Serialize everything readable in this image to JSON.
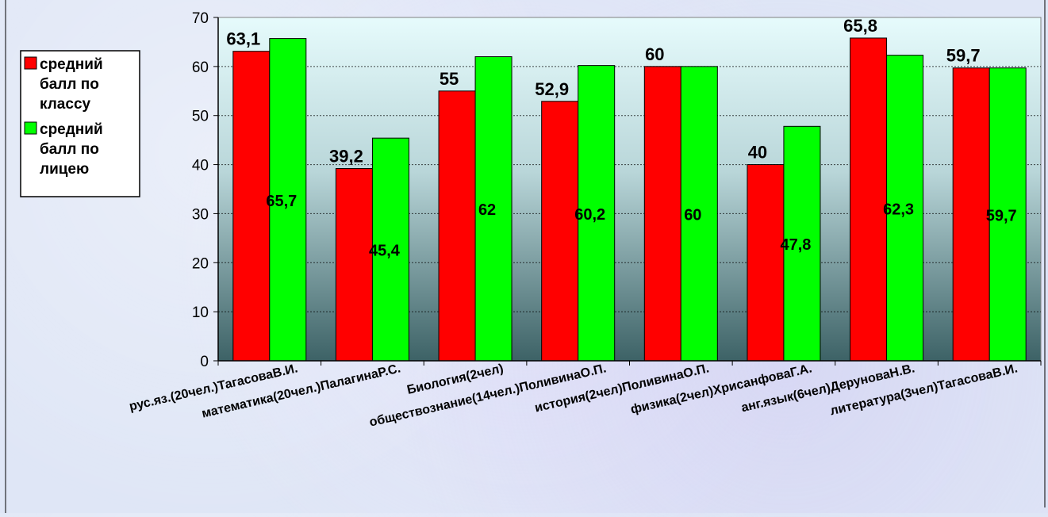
{
  "chart_data": {
    "type": "bar",
    "title": "",
    "xlabel": "",
    "ylabel": "",
    "ylim": [
      0,
      70
    ],
    "yticks": [
      0,
      10,
      20,
      30,
      40,
      50,
      60,
      70
    ],
    "grid": true,
    "legend_position": "left",
    "categories": [
      "рус.яз.(20чел.)ТагасоваВ.И.",
      "математика(20чел.)ПалагинаР.С.",
      "Биология(2чел)",
      "обществознание(14чел.)ПоливинаО.П.",
      "история(2чел)ПоливинаО.П.",
      "физика(2чел)ХрисанфоваГ.А.",
      "анг.язык(6чел)ДеруноваН.В.",
      "литература(3чел)ТагасоваВ.И."
    ],
    "series": [
      {
        "name": "средний балл по классу",
        "color": "#ff0000",
        "values": [
          63.1,
          39.2,
          55,
          52.9,
          60,
          40,
          65.8,
          59.7
        ],
        "labels": [
          "63,1",
          "39,2",
          "55",
          "52,9",
          "60",
          "40",
          "65,8",
          "59,7"
        ]
      },
      {
        "name": "средний балл по лицею",
        "color": "#00ff00",
        "values": [
          65.7,
          45.4,
          62,
          60.2,
          60,
          47.8,
          62.3,
          59.7
        ],
        "labels": [
          "65,7",
          "45,4",
          "62",
          "60,2",
          "60",
          "47,8",
          "62,3",
          "59,7"
        ]
      }
    ],
    "legend": [
      [
        "средний",
        "балл по",
        "классу"
      ],
      [
        "средний",
        "балл по",
        "лицею"
      ]
    ]
  }
}
